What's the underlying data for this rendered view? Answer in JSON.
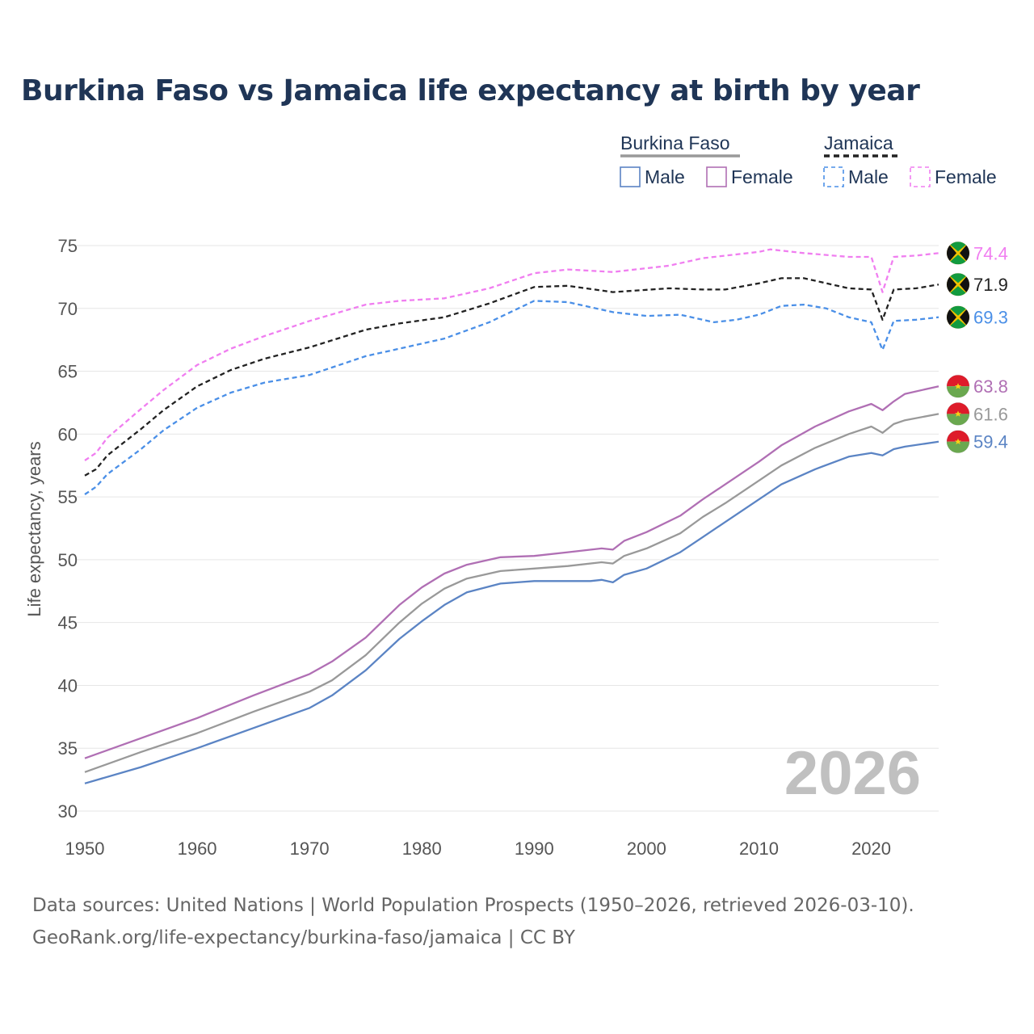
{
  "title": "Burkina Faso vs Jamaica life expectancy at birth by year",
  "source": {
    "line1": "Data sources: United Nations | World Population Prospects (1950–2026, retrieved 2026-03-10).",
    "line2": "GeoRank.org/life-expectancy/burkina-faso/jamaica | CC BY"
  },
  "legend": {
    "groups": [
      {
        "label": "Burkina Faso",
        "line_color": "#999999",
        "dash": false,
        "items": [
          {
            "label": "Male",
            "color": "#5b84c4"
          },
          {
            "label": "Female",
            "color": "#b06fb4"
          }
        ]
      },
      {
        "label": "Jamaica",
        "line_color": "#222222",
        "dash": true,
        "items": [
          {
            "label": "Male",
            "color": "#4a8fe7"
          },
          {
            "label": "Female",
            "color": "#f07ef0"
          }
        ]
      }
    ]
  },
  "chart_data": {
    "type": "line",
    "title": "Burkina Faso vs Jamaica life expectancy at birth by year",
    "xlabel": "",
    "ylabel": "Life expectancy, years",
    "xlim": [
      1950,
      2026
    ],
    "ylim": [
      30,
      75
    ],
    "xticks": [
      1950,
      1960,
      1970,
      1980,
      1990,
      2000,
      2010,
      2020
    ],
    "yticks": [
      30,
      35,
      40,
      45,
      50,
      55,
      60,
      65,
      70,
      75
    ],
    "grid": true,
    "year_watermark": "2026",
    "series": [
      {
        "name": "Jamaica Female",
        "country": "Jamaica",
        "color": "#f07ef0",
        "dash": true,
        "final_label": "74.4",
        "points": [
          [
            1950,
            57.9
          ],
          [
            1951,
            58.5
          ],
          [
            1952,
            59.7
          ],
          [
            1955,
            62.0
          ],
          [
            1957,
            63.5
          ],
          [
            1960,
            65.5
          ],
          [
            1963,
            66.8
          ],
          [
            1966,
            67.8
          ],
          [
            1970,
            69.0
          ],
          [
            1975,
            70.3
          ],
          [
            1978,
            70.6
          ],
          [
            1982,
            70.8
          ],
          [
            1986,
            71.6
          ],
          [
            1990,
            72.8
          ],
          [
            1993,
            73.1
          ],
          [
            1997,
            72.9
          ],
          [
            2002,
            73.4
          ],
          [
            2005,
            74.0
          ],
          [
            2010,
            74.5
          ],
          [
            2011,
            74.7
          ],
          [
            2014,
            74.4
          ],
          [
            2018,
            74.1
          ],
          [
            2020,
            74.1
          ],
          [
            2021,
            71.3
          ],
          [
            2022,
            74.1
          ],
          [
            2024,
            74.2
          ],
          [
            2026,
            74.4
          ]
        ]
      },
      {
        "name": "Jamaica Both sexes",
        "country": "Jamaica",
        "color": "#222222",
        "dash": true,
        "final_label": "71.9",
        "points": [
          [
            1950,
            56.7
          ],
          [
            1951,
            57.2
          ],
          [
            1952,
            58.3
          ],
          [
            1955,
            60.4
          ],
          [
            1957,
            61.9
          ],
          [
            1960,
            63.8
          ],
          [
            1963,
            65.1
          ],
          [
            1966,
            66.0
          ],
          [
            1970,
            66.9
          ],
          [
            1975,
            68.3
          ],
          [
            1978,
            68.8
          ],
          [
            1982,
            69.3
          ],
          [
            1986,
            70.4
          ],
          [
            1990,
            71.7
          ],
          [
            1993,
            71.8
          ],
          [
            1997,
            71.3
          ],
          [
            2002,
            71.6
          ],
          [
            2005,
            71.5
          ],
          [
            2007,
            71.5
          ],
          [
            2010,
            72.0
          ],
          [
            2012,
            72.4
          ],
          [
            2014,
            72.4
          ],
          [
            2018,
            71.6
          ],
          [
            2020,
            71.5
          ],
          [
            2021,
            69.1
          ],
          [
            2022,
            71.5
          ],
          [
            2024,
            71.6
          ],
          [
            2026,
            71.9
          ]
        ]
      },
      {
        "name": "Jamaica Male",
        "country": "Jamaica",
        "color": "#4a8fe7",
        "dash": true,
        "final_label": "69.3",
        "points": [
          [
            1950,
            55.2
          ],
          [
            1951,
            55.8
          ],
          [
            1952,
            56.8
          ],
          [
            1955,
            58.8
          ],
          [
            1957,
            60.3
          ],
          [
            1960,
            62.1
          ],
          [
            1963,
            63.3
          ],
          [
            1966,
            64.1
          ],
          [
            1970,
            64.7
          ],
          [
            1975,
            66.2
          ],
          [
            1978,
            66.8
          ],
          [
            1982,
            67.6
          ],
          [
            1986,
            68.9
          ],
          [
            1990,
            70.6
          ],
          [
            1993,
            70.5
          ],
          [
            1997,
            69.7
          ],
          [
            2000,
            69.4
          ],
          [
            2003,
            69.5
          ],
          [
            2006,
            68.9
          ],
          [
            2008,
            69.1
          ],
          [
            2010,
            69.5
          ],
          [
            2012,
            70.2
          ],
          [
            2014,
            70.3
          ],
          [
            2016,
            70.0
          ],
          [
            2018,
            69.3
          ],
          [
            2020,
            68.9
          ],
          [
            2021,
            66.7
          ],
          [
            2022,
            69.0
          ],
          [
            2024,
            69.1
          ],
          [
            2026,
            69.3
          ]
        ]
      },
      {
        "name": "Burkina Faso Female",
        "country": "Burkina Faso",
        "color": "#b06fb4",
        "dash": false,
        "final_label": "63.8",
        "points": [
          [
            1950,
            34.2
          ],
          [
            1955,
            35.8
          ],
          [
            1960,
            37.4
          ],
          [
            1965,
            39.2
          ],
          [
            1970,
            40.9
          ],
          [
            1972,
            41.9
          ],
          [
            1975,
            43.8
          ],
          [
            1978,
            46.4
          ],
          [
            1980,
            47.8
          ],
          [
            1982,
            48.9
          ],
          [
            1984,
            49.6
          ],
          [
            1987,
            50.2
          ],
          [
            1990,
            50.3
          ],
          [
            1993,
            50.6
          ],
          [
            1996,
            50.9
          ],
          [
            1997,
            50.8
          ],
          [
            1998,
            51.5
          ],
          [
            2000,
            52.2
          ],
          [
            2003,
            53.5
          ],
          [
            2005,
            54.8
          ],
          [
            2007,
            56.0
          ],
          [
            2010,
            57.8
          ],
          [
            2012,
            59.1
          ],
          [
            2015,
            60.6
          ],
          [
            2018,
            61.8
          ],
          [
            2020,
            62.4
          ],
          [
            2021,
            61.9
          ],
          [
            2022,
            62.6
          ],
          [
            2023,
            63.2
          ],
          [
            2026,
            63.8
          ]
        ]
      },
      {
        "name": "Burkina Faso Both sexes",
        "country": "Burkina Faso",
        "color": "#999999",
        "dash": false,
        "final_label": "61.6",
        "points": [
          [
            1950,
            33.1
          ],
          [
            1955,
            34.7
          ],
          [
            1960,
            36.2
          ],
          [
            1965,
            37.9
          ],
          [
            1970,
            39.5
          ],
          [
            1972,
            40.4
          ],
          [
            1975,
            42.4
          ],
          [
            1978,
            45.0
          ],
          [
            1980,
            46.5
          ],
          [
            1982,
            47.7
          ],
          [
            1984,
            48.5
          ],
          [
            1987,
            49.1
          ],
          [
            1990,
            49.3
          ],
          [
            1993,
            49.5
          ],
          [
            1996,
            49.8
          ],
          [
            1997,
            49.7
          ],
          [
            1998,
            50.3
          ],
          [
            2000,
            50.9
          ],
          [
            2003,
            52.1
          ],
          [
            2005,
            53.4
          ],
          [
            2007,
            54.5
          ],
          [
            2010,
            56.3
          ],
          [
            2012,
            57.5
          ],
          [
            2015,
            58.9
          ],
          [
            2018,
            60.0
          ],
          [
            2020,
            60.6
          ],
          [
            2021,
            60.1
          ],
          [
            2022,
            60.8
          ],
          [
            2023,
            61.1
          ],
          [
            2026,
            61.6
          ]
        ]
      },
      {
        "name": "Burkina Faso Male",
        "country": "Burkina Faso",
        "color": "#5b84c4",
        "dash": false,
        "final_label": "59.4",
        "points": [
          [
            1950,
            32.2
          ],
          [
            1955,
            33.5
          ],
          [
            1960,
            35.0
          ],
          [
            1965,
            36.6
          ],
          [
            1970,
            38.2
          ],
          [
            1972,
            39.2
          ],
          [
            1975,
            41.2
          ],
          [
            1978,
            43.7
          ],
          [
            1980,
            45.1
          ],
          [
            1982,
            46.4
          ],
          [
            1984,
            47.4
          ],
          [
            1987,
            48.1
          ],
          [
            1990,
            48.3
          ],
          [
            1993,
            48.3
          ],
          [
            1995,
            48.3
          ],
          [
            1996,
            48.4
          ],
          [
            1997,
            48.2
          ],
          [
            1998,
            48.8
          ],
          [
            2000,
            49.3
          ],
          [
            2003,
            50.6
          ],
          [
            2005,
            51.8
          ],
          [
            2007,
            53.0
          ],
          [
            2010,
            54.8
          ],
          [
            2012,
            56.0
          ],
          [
            2015,
            57.2
          ],
          [
            2018,
            58.2
          ],
          [
            2020,
            58.5
          ],
          [
            2021,
            58.3
          ],
          [
            2022,
            58.8
          ],
          [
            2023,
            59.0
          ],
          [
            2026,
            59.4
          ]
        ]
      }
    ]
  }
}
